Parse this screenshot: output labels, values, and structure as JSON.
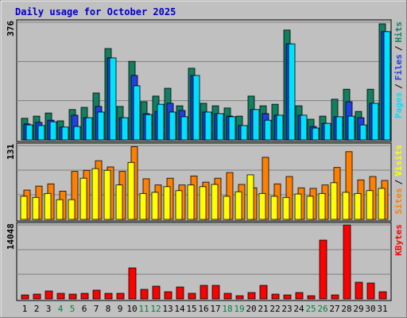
{
  "chart_data": [
    {
      "type": "bar",
      "title": "Daily usage for October 2025",
      "ylim": [
        0,
        376
      ],
      "yticks": [
        376
      ],
      "legend_separator": "/",
      "series": [
        {
          "name": "Pages",
          "color": "#00e0ff",
          "values": [
            48,
            46,
            58,
            41,
            43,
            71,
            89,
            262,
            71,
            173,
            81,
            114,
            89,
            74,
            206,
            89,
            84,
            74,
            46,
            97,
            63,
            79,
            307,
            79,
            38,
            53,
            74,
            76,
            48,
            117,
            346
          ]
        },
        {
          "name": "Files",
          "color": "#2040e0",
          "values": [
            51,
            56,
            63,
            41,
            79,
            71,
            107,
            262,
            71,
            206,
            84,
            91,
            117,
            94,
            206,
            89,
            84,
            76,
            46,
            97,
            84,
            79,
            307,
            79,
            43,
            53,
            74,
            122,
            71,
            117,
            346
          ]
        },
        {
          "name": "Hits",
          "color": "#108060",
          "values": [
            69,
            76,
            86,
            61,
            97,
            104,
            150,
            292,
            107,
            251,
            122,
            140,
            165,
            109,
            229,
            117,
            109,
            102,
            76,
            140,
            109,
            114,
            351,
            109,
            66,
            76,
            130,
            162,
            91,
            162,
            371
          ]
        }
      ]
    },
    {
      "type": "bar",
      "ylim": [
        0,
        131
      ],
      "yticks": [
        131
      ],
      "legend_separator": "/",
      "series": [
        {
          "name": "Sites",
          "color": "#ff8000",
          "values": [
            52,
            59,
            63,
            50,
            85,
            87,
            104,
            93,
            85,
            129,
            72,
            61,
            73,
            61,
            77,
            66,
            73,
            83,
            62,
            56,
            110,
            63,
            76,
            56,
            55,
            61,
            92,
            120,
            70,
            76,
            69
          ]
        },
        {
          "name": "Visits",
          "color": "#ffff00",
          "values": [
            41,
            39,
            46,
            35,
            35,
            73,
            90,
            87,
            61,
            101,
            46,
            48,
            58,
            51,
            61,
            58,
            62,
            41,
            49,
            79,
            46,
            41,
            39,
            45,
            41,
            46,
            65,
            48,
            46,
            51,
            55
          ]
        }
      ]
    },
    {
      "type": "bar",
      "ylim": [
        0,
        14048
      ],
      "yticks": [
        14048
      ],
      "categories": [
        "1",
        "2",
        "3",
        "4",
        "5",
        "6",
        "7",
        "8",
        "9",
        "10",
        "11",
        "12",
        "13",
        "14",
        "15",
        "16",
        "17",
        "18",
        "19",
        "20",
        "21",
        "22",
        "23",
        "24",
        "25",
        "26",
        "27",
        "28",
        "29",
        "30",
        "31"
      ],
      "category_colors": [
        "#000000",
        "#000000",
        "#000000",
        "#008040",
        "#008040",
        "#000000",
        "#000000",
        "#000000",
        "#000000",
        "#000000",
        "#008040",
        "#008040",
        "#000000",
        "#000000",
        "#000000",
        "#000000",
        "#000000",
        "#008040",
        "#008040",
        "#000000",
        "#000000",
        "#000000",
        "#000000",
        "#000000",
        "#008040",
        "#008040",
        "#000000",
        "#000000",
        "#000000",
        "#000000",
        "#000000"
      ],
      "series": [
        {
          "name": "KBytes",
          "color": "#ff0000",
          "values": [
            755,
            906,
            1510,
            1057,
            906,
            1057,
            1661,
            1057,
            1057,
            5890,
            1812,
            2416,
            1359,
            2265,
            1057,
            2567,
            2567,
            1057,
            604,
            1208,
            2567,
            906,
            755,
            1208,
            604,
            11174,
            755,
            14048,
            3171,
            3020,
            1359
          ]
        }
      ]
    }
  ]
}
